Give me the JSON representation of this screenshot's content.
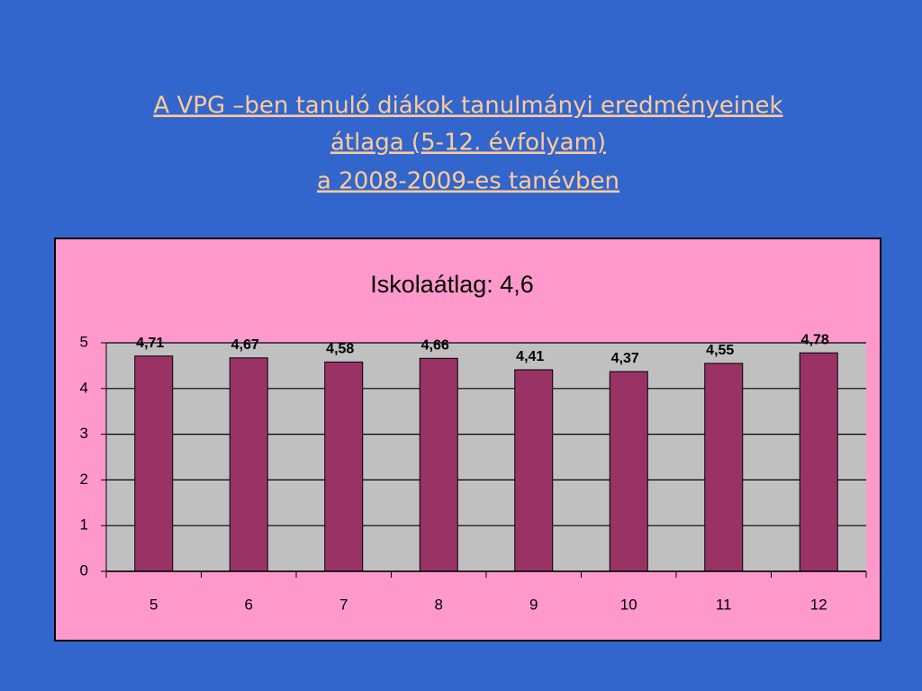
{
  "slide": {
    "title_lines": [
      "A VPG –ben tanuló diákok tanulmányi eredményeinek",
      "átlaga (5-12. évfolyam)",
      "a 2008-2009-es tanévben"
    ]
  },
  "chart_data": {
    "type": "bar",
    "title": "Iskolaátlag: 4,6",
    "categories": [
      "5",
      "6",
      "7",
      "8",
      "9",
      "10",
      "11",
      "12"
    ],
    "values": [
      4.71,
      4.67,
      4.58,
      4.66,
      4.41,
      4.37,
      4.55,
      4.78
    ],
    "value_labels": [
      "4,71",
      "4,67",
      "4,58",
      "4,66",
      "4,41",
      "4,37",
      "4,55",
      "4,78"
    ],
    "color": "#993366",
    "ylim": [
      0,
      5
    ],
    "yticks": [
      0,
      1,
      2,
      3,
      4,
      5
    ],
    "grid": true
  }
}
